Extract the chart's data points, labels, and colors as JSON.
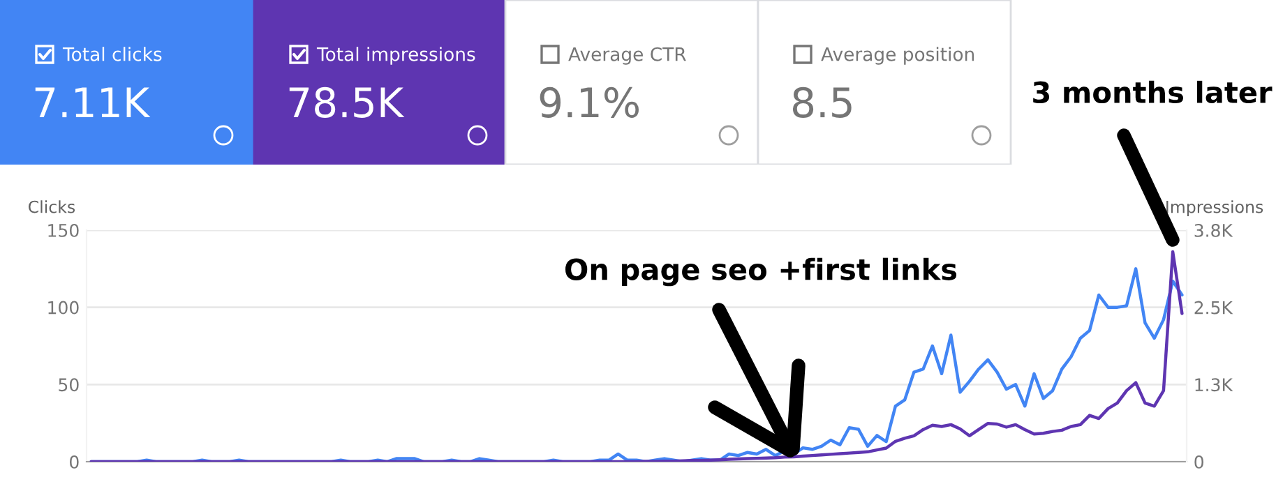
{
  "chart_data": [
    {
      "type": "other",
      "annotations": [
        "Total clicks",
        "7.11K",
        "Total impressions",
        "78.5K",
        "Average CTR",
        "9.1%",
        "Average position",
        "8.5"
      ]
    },
    {
      "type": "line",
      "ylabel": "Clicks",
      "y2label": "Impressions",
      "categories": [
        null,
        null,
        null,
        null,
        null,
        null,
        null,
        null,
        null,
        null,
        null,
        null,
        null,
        null,
        null,
        null,
        null,
        null,
        null,
        null,
        null,
        null,
        null,
        null,
        null,
        null,
        null,
        null,
        null,
        null,
        null,
        null,
        null,
        null,
        null,
        null,
        null,
        null,
        null,
        null,
        null,
        null,
        null,
        null,
        null,
        null,
        null,
        null,
        null,
        null,
        null,
        null,
        null,
        null,
        null,
        null,
        null,
        null,
        null,
        null,
        null,
        null,
        null,
        null,
        null,
        null,
        null,
        null,
        null,
        null,
        null,
        null,
        null,
        null,
        null,
        null,
        null,
        null,
        null,
        null,
        null,
        null,
        null,
        null,
        null,
        null,
        null,
        null,
        null,
        null,
        null,
        null,
        null,
        null,
        null,
        null,
        null,
        null,
        null,
        null,
        null,
        null,
        null,
        null,
        null,
        null,
        null,
        null,
        null,
        null,
        null,
        null,
        null,
        null,
        null,
        null,
        null,
        null,
        null
      ],
      "series": [
        {
          "color": "#4285f4",
          "values": [
            0,
            0,
            0,
            0,
            0,
            0,
            1,
            0,
            0,
            0,
            0,
            0,
            1,
            0,
            0,
            0,
            1,
            0,
            0,
            0,
            0,
            0,
            0,
            0,
            0,
            0,
            0,
            1,
            0,
            0,
            0,
            1,
            0,
            2,
            2,
            2,
            0,
            0,
            0,
            1,
            0,
            0,
            2,
            1,
            0,
            0,
            0,
            0,
            0,
            0,
            1,
            0,
            0,
            0,
            0,
            1,
            1,
            5,
            1,
            1,
            0,
            1,
            2,
            1,
            0,
            1,
            2,
            1,
            1,
            5,
            4,
            6,
            5,
            8,
            4,
            7,
            5,
            9,
            8,
            10,
            14,
            11,
            22,
            21,
            10,
            17,
            13,
            36,
            40,
            58,
            60,
            75,
            57,
            82,
            45,
            52,
            60,
            66,
            58,
            47,
            50,
            36,
            57,
            41,
            46,
            60,
            68,
            80,
            85,
            108,
            100,
            100,
            101,
            125,
            90,
            80,
            92,
            117,
            108
          ]
        },
        {
          "color": "#5e35b1",
          "axis": "y2",
          "values": [
            0,
            0,
            0,
            0,
            0,
            0,
            0,
            0,
            0,
            0,
            0,
            0,
            0,
            0,
            0,
            0,
            0,
            0,
            0,
            0,
            0,
            0,
            0,
            0,
            0,
            0,
            0,
            0,
            0,
            0,
            0,
            0,
            0,
            0,
            0,
            0,
            0,
            0,
            0,
            0,
            0,
            0,
            0,
            0,
            0,
            0,
            0,
            0,
            0,
            0,
            0,
            0,
            0,
            0,
            0,
            0,
            0,
            0,
            0,
            0,
            5,
            5,
            10,
            10,
            15,
            20,
            20,
            25,
            30,
            40,
            45,
            50,
            55,
            60,
            65,
            75,
            80,
            90,
            100,
            110,
            120,
            130,
            140,
            150,
            160,
            190,
            220,
            330,
            380,
            420,
            520,
            590,
            570,
            600,
            530,
            420,
            520,
            620,
            610,
            560,
            600,
            520,
            450,
            460,
            490,
            510,
            570,
            600,
            750,
            700,
            860,
            950,
            1150,
            1280,
            950,
            900,
            1150,
            3400,
            2400
          ]
        }
      ],
      "ylim": [
        0,
        150
      ],
      "yticks": [
        0,
        50,
        100,
        150
      ],
      "y2lim": [
        0,
        3750
      ],
      "y2ticks": [
        {
          "value": 0,
          "label": "0"
        },
        {
          "value": 1250,
          "label": "1.3K"
        },
        {
          "value": 2500,
          "label": "2.5K"
        },
        {
          "value": 3750,
          "label": "3.8K"
        }
      ],
      "grid": "y",
      "tick_labels": "y",
      "annotations": [
        "On page seo +first links",
        "3 months later"
      ]
    }
  ]
}
